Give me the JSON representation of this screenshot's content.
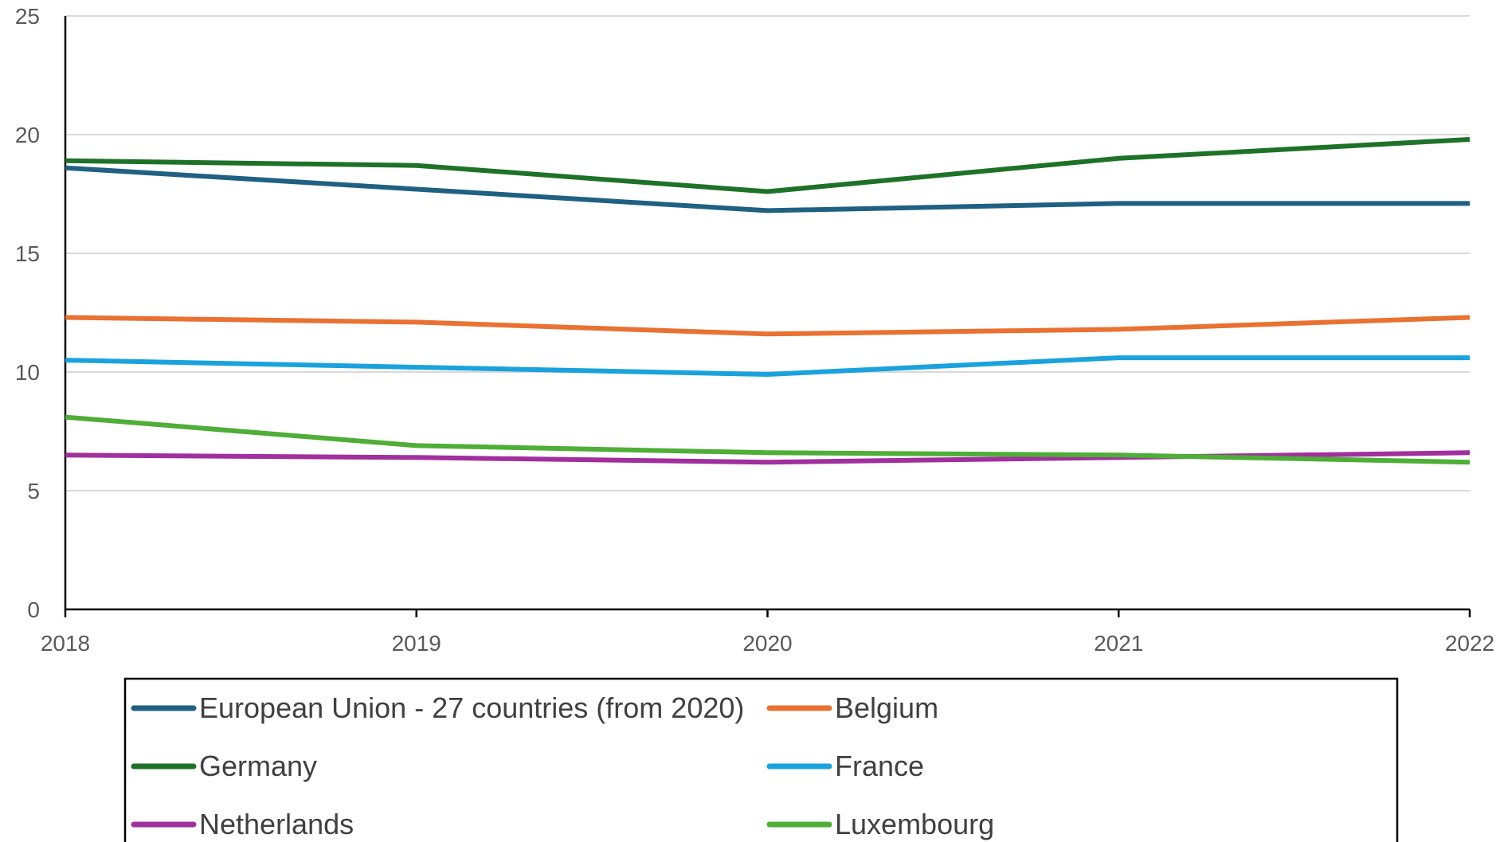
{
  "chart_data": {
    "type": "line",
    "title": "",
    "xlabel": "",
    "ylabel": "",
    "x": [
      "2018",
      "2019",
      "2020",
      "2021",
      "2022"
    ],
    "ylim": [
      0,
      25
    ],
    "yticks": [
      "0",
      "5",
      "10",
      "15",
      "20",
      "25"
    ],
    "grid": true,
    "legend_position": "bottom",
    "series": [
      {
        "name": "European Union - 27 countries (from 2020)",
        "color": "#1f6083",
        "values": [
          18.6,
          17.7,
          16.8,
          17.1,
          17.1
        ]
      },
      {
        "name": "Belgium",
        "color": "#e97132",
        "values": [
          12.3,
          12.1,
          11.6,
          11.8,
          12.3
        ]
      },
      {
        "name": "Germany",
        "color": "#1e7228",
        "values": [
          18.9,
          18.7,
          17.6,
          19.0,
          19.8
        ]
      },
      {
        "name": "France",
        "color": "#1aa2dd",
        "values": [
          10.5,
          10.2,
          9.9,
          10.6,
          10.6
        ]
      },
      {
        "name": "Netherlands",
        "color": "#a12f9e",
        "values": [
          6.5,
          6.4,
          6.2,
          6.4,
          6.6
        ]
      },
      {
        "name": "Luxembourg",
        "color": "#4eae37",
        "values": [
          8.1,
          6.9,
          6.6,
          6.5,
          6.2
        ]
      }
    ]
  }
}
